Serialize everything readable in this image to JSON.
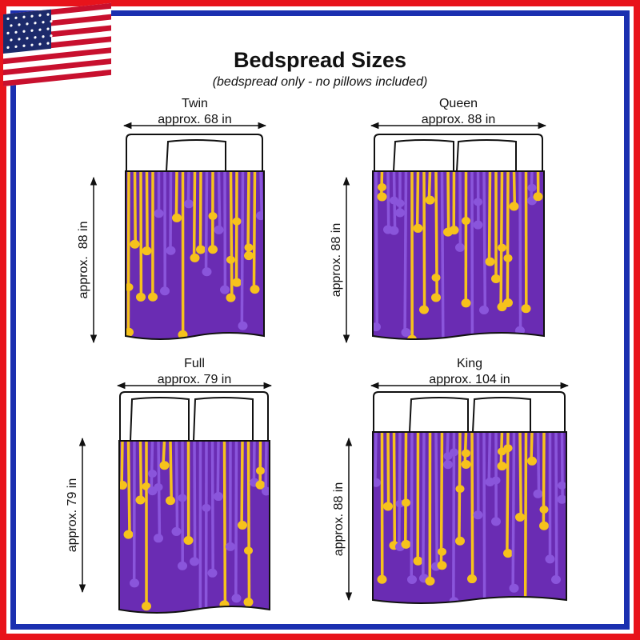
{
  "header": {
    "title": "Bedspread Sizes",
    "subtitle": "(bedspread only - no pillows included)"
  },
  "beds": [
    {
      "name": "Twin",
      "width": "approx. 68 in",
      "length": "approx.  88 in"
    },
    {
      "name": "Queen",
      "width": "approx. 88 in",
      "length": "approx. 88 in"
    },
    {
      "name": "Full",
      "width": "approx. 79 in",
      "length": "approx. 79 in"
    },
    {
      "name": "King",
      "width": "approx. 104 in",
      "length": "approx. 88 in"
    }
  ]
}
